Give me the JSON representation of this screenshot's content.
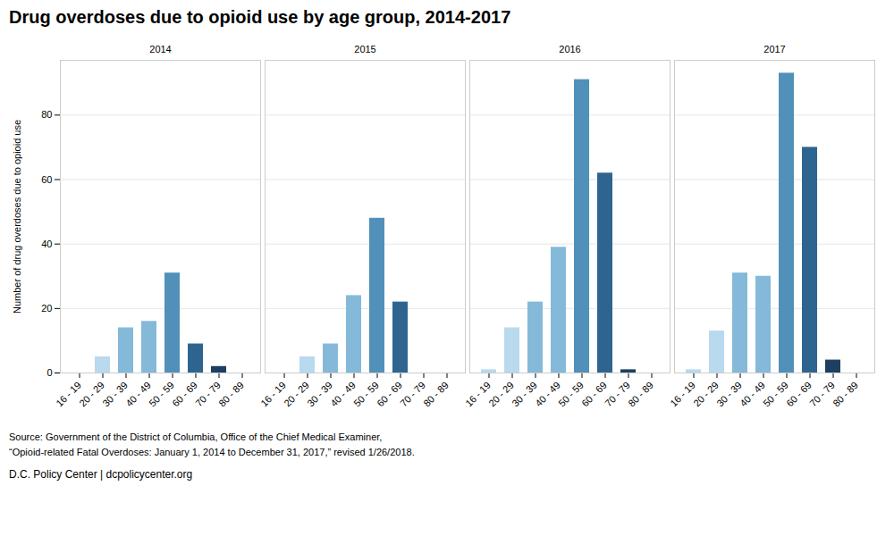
{
  "chart_data": {
    "type": "bar",
    "title": "Drug overdoses due to opioid use by age group, 2014-2017",
    "ylabel": "Number of drug overdoses due to opioid use",
    "categories": [
      "16 - 19",
      "20 - 29",
      "30 - 39",
      "40 - 49",
      "50 - 59",
      "60 - 69",
      "70 - 79",
      "80 - 89"
    ],
    "series": [
      {
        "name": "2014",
        "values": [
          0,
          5,
          14,
          16,
          31,
          9,
          2,
          0
        ]
      },
      {
        "name": "2015",
        "values": [
          0,
          5,
          9,
          24,
          48,
          22,
          0,
          0
        ]
      },
      {
        "name": "2016",
        "values": [
          1,
          14,
          22,
          39,
          91,
          62,
          1,
          0
        ]
      },
      {
        "name": "2017",
        "values": [
          1,
          13,
          31,
          30,
          93,
          70,
          4,
          0
        ]
      }
    ],
    "colors": [
      "#b8d9ee",
      "#b8d9ee",
      "#85b9d9",
      "#85b9d9",
      "#5190b8",
      "#2e6590",
      "#1d4060",
      "#1d4060"
    ],
    "ylim": [
      0,
      97
    ],
    "yticks": [
      0,
      20,
      40,
      60,
      80
    ],
    "grid": true,
    "annotations": [
      "Source: Government of the District of Columbia, Office of the Chief Medical Examiner,",
      "“Opioid-related Fatal Overdoses: January 1, 2014 to December 31, 2017,” revised 1/26/2018.",
      "D.C. Policy Center  |  dcpolicycenter.org"
    ]
  }
}
